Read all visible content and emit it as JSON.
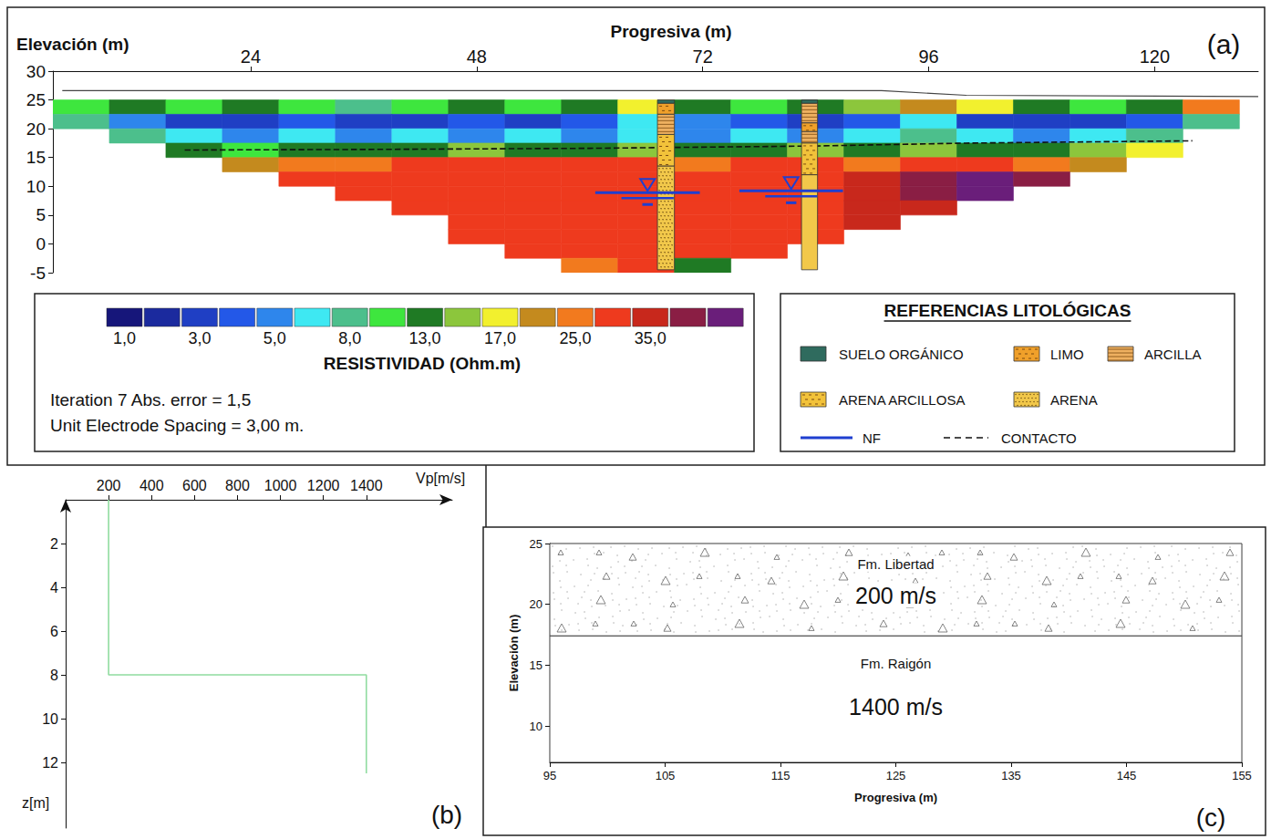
{
  "chart_data": [
    {
      "type": "heatmap",
      "label": "(a)",
      "x_label": "Progresiva (m)",
      "y_label": "Elevación (m)",
      "xlim": [
        3,
        131
      ],
      "xticks": [
        24,
        48,
        72,
        96,
        120
      ],
      "ylim": [
        -5,
        30
      ],
      "yticks": [
        -5,
        0,
        5,
        10,
        15,
        20,
        25,
        30
      ],
      "x": [
        6,
        12,
        18,
        24,
        30,
        36,
        42,
        48,
        54,
        60,
        66,
        72,
        78,
        84,
        90,
        96,
        102,
        108,
        114,
        120,
        126
      ],
      "y": [
        23.75,
        21.25,
        18.75,
        16.25,
        13.75,
        11.25,
        8.75,
        6.25,
        3.75,
        1.25,
        -1.25,
        -3.75
      ],
      "cells": [
        [
          10,
          13,
          10,
          13,
          10,
          8,
          10,
          13,
          10,
          13,
          17,
          13,
          10,
          13,
          15,
          21,
          17,
          13,
          10,
          13,
          25
        ],
        [
          8,
          5,
          3,
          3,
          4,
          3,
          3,
          4,
          3,
          4,
          6.5,
          5,
          4,
          3,
          4,
          6.5,
          3,
          3,
          3,
          4,
          8
        ],
        [
          null,
          8,
          6.5,
          5,
          6.5,
          5,
          6.5,
          5,
          6.5,
          5,
          6.5,
          5,
          6.5,
          5,
          6.5,
          8,
          6.5,
          5,
          6.5,
          8,
          null
        ],
        [
          null,
          null,
          13,
          10,
          13,
          13,
          13,
          15,
          13,
          13,
          15,
          13,
          13,
          15,
          13,
          15,
          13,
          13,
          15,
          17,
          null
        ],
        [
          null,
          null,
          null,
          21,
          25,
          25,
          30,
          30,
          30,
          30,
          30,
          25,
          30,
          30,
          25,
          30,
          30,
          25,
          21,
          null,
          null
        ],
        [
          null,
          null,
          null,
          null,
          30,
          30,
          30,
          30,
          30,
          30,
          30,
          30,
          30,
          30,
          35,
          42,
          50,
          42,
          null,
          null,
          null
        ],
        [
          null,
          null,
          null,
          null,
          null,
          30,
          30,
          30,
          30,
          30,
          30,
          30,
          30,
          30,
          35,
          42,
          50,
          null,
          null,
          null,
          null
        ],
        [
          null,
          null,
          null,
          null,
          null,
          null,
          30,
          30,
          30,
          30,
          30,
          30,
          30,
          30,
          35,
          35,
          null,
          null,
          null,
          null,
          null
        ],
        [
          null,
          null,
          null,
          null,
          null,
          null,
          null,
          30,
          30,
          30,
          30,
          30,
          30,
          30,
          35,
          null,
          null,
          null,
          null,
          null,
          null
        ],
        [
          null,
          null,
          null,
          null,
          null,
          null,
          null,
          30,
          30,
          30,
          30,
          30,
          30,
          30,
          null,
          null,
          null,
          null,
          null,
          null,
          null
        ],
        [
          null,
          null,
          null,
          null,
          null,
          null,
          null,
          null,
          30,
          30,
          30,
          30,
          30,
          null,
          null,
          null,
          null,
          null,
          null,
          null,
          null
        ],
        [
          null,
          null,
          null,
          null,
          null,
          null,
          null,
          null,
          null,
          25,
          30,
          13,
          null,
          null,
          null,
          null,
          null,
          null,
          null,
          null,
          null
        ]
      ],
      "colorbar": {
        "title": "RESISTIVIDAD (Ohm.m)",
        "values": [
          1,
          2,
          3,
          4,
          5,
          6.5,
          8,
          10,
          13,
          15,
          17,
          21,
          25,
          30,
          35,
          42,
          50
        ],
        "colors": [
          "#16167a",
          "#1b2a9e",
          "#1f3fc4",
          "#2358e8",
          "#2e86ec",
          "#3ee8f2",
          "#4cbf8c",
          "#3ee63e",
          "#1f7a24",
          "#8cc63c",
          "#f2f02e",
          "#c48a1e",
          "#f27a1e",
          "#ee3a1e",
          "#c8281c",
          "#8a1e44",
          "#6a1e7a"
        ],
        "ticks": [
          {
            "value": 1,
            "label": "1,0"
          },
          {
            "value": 3,
            "label": "3,0"
          },
          {
            "value": 5,
            "label": "5,0"
          },
          {
            "value": 8,
            "label": "8,0"
          },
          {
            "value": 13,
            "label": "13,0"
          },
          {
            "value": 17,
            "label": "17,0"
          },
          {
            "value": 25,
            "label": "25,0"
          },
          {
            "value": 35,
            "label": "35,0"
          }
        ]
      },
      "annotations": [
        "Iteration 7 Abs. error = 1,5",
        "Unit Electrode Spacing = 3,00 m."
      ],
      "surface": {
        "x": [
          4,
          91,
          100,
          131
        ],
        "y": [
          26.6,
          26.6,
          25.8,
          25.6
        ]
      },
      "contact": {
        "x": [
          17,
          36,
          60,
          84,
          100,
          124
        ],
        "y": [
          16.3,
          16.4,
          16.6,
          17.0,
          17.5,
          17.9
        ]
      },
      "boreholes": [
        {
          "x": [
            67.2,
            69.0
          ],
          "intervals": [
            {
              "top": 25,
              "bottom": 24.4,
              "lithology": "SUELO ORGÁNICO"
            },
            {
              "top": 24.4,
              "bottom": 22.5,
              "lithology": "LIMO"
            },
            {
              "top": 22.5,
              "bottom": 19,
              "lithology": "ARCILLA"
            },
            {
              "top": 19,
              "bottom": 13.5,
              "lithology": "ARENA ARCILLOSA"
            },
            {
              "top": 13.5,
              "bottom": -4.5,
              "lithology": "ARENA"
            }
          ]
        },
        {
          "x": [
            82.5,
            84.2
          ],
          "intervals": [
            {
              "top": 25,
              "bottom": 24.4,
              "lithology": "SUELO ORGÁNICO"
            },
            {
              "top": 24.4,
              "bottom": 21,
              "lithology": "ARCILLA"
            },
            {
              "top": 21,
              "bottom": 19.5,
              "lithology": "LIMO"
            },
            {
              "top": 19.5,
              "bottom": 17.5,
              "lithology": "ARCILLA"
            },
            {
              "top": 17.5,
              "bottom": 12,
              "lithology": "ARENA ARCILLOSA"
            },
            {
              "top": 12,
              "bottom": -4.5,
              "lithology": "ARENA"
            }
          ]
        }
      ],
      "water_table": [
        {
          "x": [
            60.6,
            71.7
          ],
          "y": 8.9
        },
        {
          "x": [
            75.9,
            86.9
          ],
          "y": 9.2
        }
      ],
      "lithology_legend": {
        "title": "REFERENCIAS LITOLÓGICAS",
        "items": [
          {
            "name": "SUELO ORGÁNICO",
            "color": "#2f6b5e"
          },
          {
            "name": "LIMO",
            "color": "#f0a02a"
          },
          {
            "name": "ARCILLA",
            "color": "#eeb060"
          },
          {
            "name": "ARENA ARCILLOSA",
            "color": "#f2c23a"
          },
          {
            "name": "ARENA",
            "color": "#f2c84a"
          }
        ],
        "water_table": "NF",
        "contact": "CONTACTO"
      }
    },
    {
      "type": "line",
      "label": "(b)",
      "x_label": "Vp[m/s]",
      "y_label": "z[m]",
      "xlim": [
        0,
        1800
      ],
      "xticks": [
        200,
        400,
        600,
        800,
        1000,
        1200,
        1400
      ],
      "ylim": [
        0,
        15
      ],
      "yticks": [
        2,
        4,
        6,
        8,
        10,
        12
      ],
      "series": [
        {
          "x": [
            200,
            200,
            1400,
            1400
          ],
          "values": [
            0,
            8,
            8,
            12.5
          ],
          "color": "#90dca0"
        }
      ]
    },
    {
      "type": "layers",
      "label": "(c)",
      "x_label": "Progresiva (m)",
      "y_label": "Elevación (m)",
      "xlim": [
        95,
        155
      ],
      "xticks": [
        95,
        105,
        115,
        125,
        135,
        145,
        155
      ],
      "ylim": [
        7,
        25
      ],
      "yticks": [
        10,
        15,
        20,
        25
      ],
      "layers": [
        {
          "name": "Fm. Libertad",
          "top": 25,
          "bottom": 17.4,
          "velocity": {
            "value": 200,
            "label": "200 m/s"
          }
        },
        {
          "name": "Fm. Raigón",
          "top": 17.4,
          "bottom": 7,
          "velocity": {
            "value": 1400,
            "label": "1400 m/s"
          }
        }
      ]
    }
  ]
}
